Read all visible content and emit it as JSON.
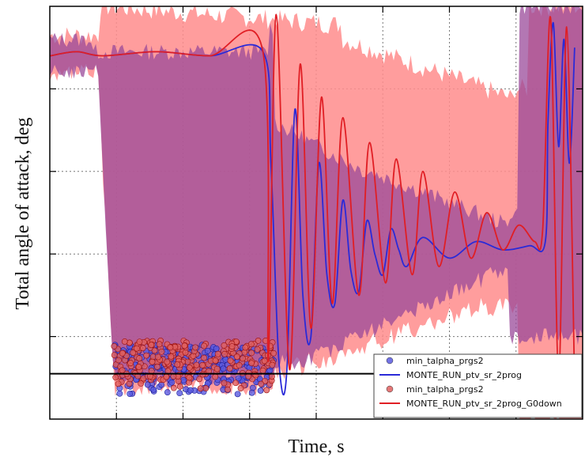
{
  "chart_data": {
    "type": "line",
    "title": "",
    "xlabel": "Time, s",
    "ylabel": "Total angle of attack, deg",
    "xlim": [
      0,
      1
    ],
    "ylim": [
      0,
      1
    ],
    "grid": true,
    "legend_position": "bottom-right",
    "tick_labels_visible": false,
    "reference_line_y": 0.11,
    "colors": {
      "blue": "#2a2ad8",
      "red": "#e01e24",
      "blue_band": "#6a6ae6",
      "red_band": "#ff8c8c",
      "overlap_band": "#9a4a9a"
    },
    "legend": [
      {
        "label": "min_talpha_prgs2",
        "marker": "circle",
        "color": "#5a5ae0"
      },
      {
        "label": "MONTE_RUN_ptv_sr_2prog",
        "marker": "line",
        "color": "#2a2ad8"
      },
      {
        "label": "min_talpha_prgs2",
        "marker": "circle",
        "color": "#e06060"
      },
      {
        "label": "MONTE_RUN_ptv_sr_2prog_G0down",
        "marker": "line",
        "color": "#e01e24"
      }
    ],
    "series": [
      {
        "name": "MONTE_RUN_ptv_sr_2prog",
        "color": "#2a2ad8",
        "x": [
          0,
          0.05,
          0.1,
          0.2,
          0.3,
          0.4,
          0.415,
          0.43,
          0.445,
          0.46,
          0.475,
          0.49,
          0.505,
          0.52,
          0.535,
          0.55,
          0.565,
          0.58,
          0.595,
          0.61,
          0.625,
          0.64,
          0.655,
          0.67,
          0.7,
          0.75,
          0.8,
          0.85,
          0.9,
          0.93,
          0.935,
          0.945,
          0.955,
          0.965,
          0.975,
          0.985
        ],
        "y": [
          0.88,
          0.89,
          0.88,
          0.89,
          0.88,
          0.89,
          0.62,
          0.14,
          0.12,
          0.75,
          0.3,
          0.2,
          0.62,
          0.35,
          0.28,
          0.53,
          0.36,
          0.31,
          0.48,
          0.4,
          0.35,
          0.46,
          0.41,
          0.37,
          0.44,
          0.39,
          0.43,
          0.41,
          0.42,
          0.43,
          0.72,
          0.96,
          0.66,
          0.92,
          0.62,
          0.9
        ]
      },
      {
        "name": "MONTE_RUN_ptv_sr_2prog_G0down",
        "color": "#e01e24",
        "x": [
          0,
          0.05,
          0.1,
          0.2,
          0.3,
          0.4,
          0.41,
          0.425,
          0.45,
          0.47,
          0.49,
          0.51,
          0.53,
          0.55,
          0.58,
          0.6,
          0.63,
          0.65,
          0.68,
          0.7,
          0.73,
          0.76,
          0.79,
          0.82,
          0.85,
          0.88,
          0.91,
          0.925,
          0.94,
          0.955,
          0.97,
          0.985
        ],
        "y": [
          0.88,
          0.89,
          0.88,
          0.89,
          0.88,
          0.89,
          0.14,
          0.98,
          0.12,
          0.86,
          0.22,
          0.78,
          0.28,
          0.73,
          0.3,
          0.67,
          0.33,
          0.63,
          0.35,
          0.6,
          0.37,
          0.55,
          0.39,
          0.5,
          0.41,
          0.47,
          0.43,
          0.46,
          0.97,
          0.1,
          0.95,
          0.08
        ]
      },
      {
        "name": "min_talpha_prgs2",
        "color": "#5a5ae0",
        "type": "scatter",
        "x_range": [
          0.12,
          0.42
        ],
        "y_range": [
          0.06,
          0.18
        ]
      },
      {
        "name": "min_talpha_prgs2",
        "color": "#e06060",
        "type": "scatter",
        "x_range": [
          0.12,
          0.42
        ],
        "y_range": [
          0.07,
          0.19
        ]
      }
    ]
  }
}
